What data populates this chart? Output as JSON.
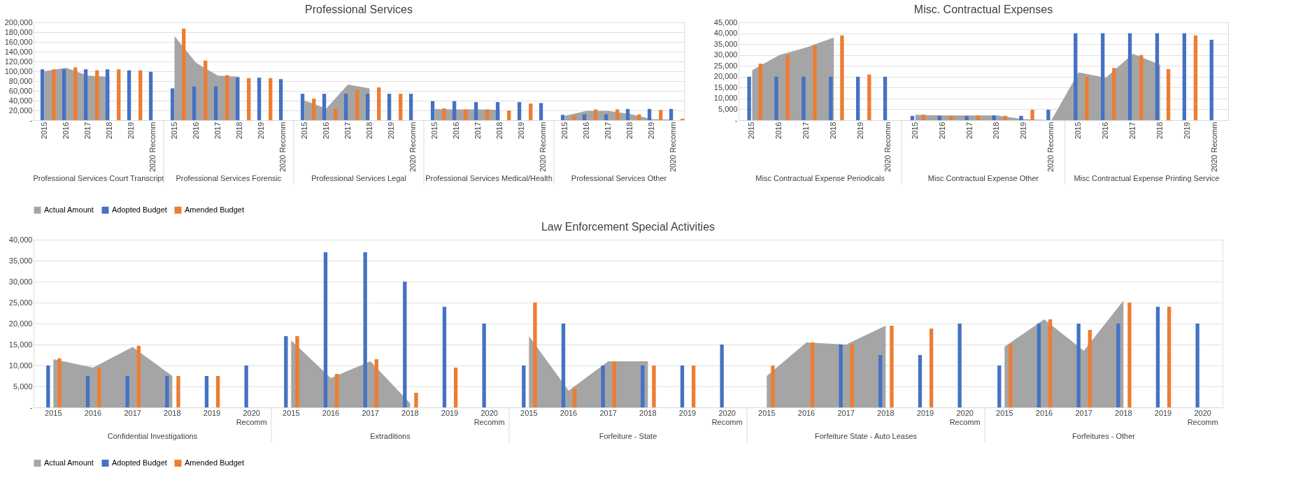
{
  "chart_data": [
    {
      "type": "bar",
      "title": "Professional Services",
      "categories": [
        "2015",
        "2016",
        "2017",
        "2018",
        "2019",
        "2020 Recomm",
        "2015",
        "2016",
        "2017",
        "2018",
        "2019",
        "2020 Recomm",
        "2015",
        "2016",
        "2017",
        "2018",
        "2019",
        "2020 Recomm",
        "2015",
        "2016",
        "2017",
        "2018",
        "2019",
        "2020 Recomm",
        "2015",
        "2016",
        "2017",
        "2018",
        "2019",
        "2020 Recomm"
      ],
      "annotations": [
        "Professional Services Court Transcript",
        "Professional Services Forensic",
        "Professional Services Legal",
        "Professional Services Medical/Health",
        "Professional Services Other"
      ],
      "series": [
        {
          "name": "Actual Amount",
          "type": "area",
          "color": "#a5a5a5",
          "values": [
            100000,
            107000,
            91000,
            89000,
            null,
            null,
            172000,
            117000,
            91000,
            89000,
            null,
            null,
            40000,
            24000,
            73000,
            65000,
            null,
            null,
            23000,
            22000,
            22000,
            21000,
            null,
            null,
            9000,
            19000,
            19000,
            13000,
            2000,
            1000
          ]
        },
        {
          "name": "Adopted Budget",
          "type": "bar",
          "color": "#4472c4",
          "values": [
            104000,
            104000,
            104000,
            104000,
            102000,
            99000,
            65000,
            69000,
            69000,
            87000,
            87000,
            84000,
            54000,
            54000,
            54000,
            54000,
            54000,
            54000,
            39000,
            39000,
            37000,
            37000,
            37000,
            35000,
            11000,
            12000,
            12000,
            23000,
            23000,
            23000
          ]
        },
        {
          "name": "Amended Budget",
          "type": "bar",
          "color": "#ed7d31",
          "values": [
            104000,
            108000,
            102000,
            104000,
            102000,
            null,
            187000,
            122000,
            92000,
            86000,
            86000,
            null,
            44000,
            24000,
            62000,
            67000,
            54000,
            null,
            24000,
            22000,
            22000,
            20000,
            34000,
            null,
            9000,
            22000,
            22000,
            12000,
            21000,
            3000
          ]
        }
      ],
      "ylim": [
        0,
        200000
      ],
      "yticks": [
        {
          "value": 0,
          "label": "-"
        },
        {
          "value": 20000,
          "label": "20,000"
        },
        {
          "value": 40000,
          "label": "40,000"
        },
        {
          "value": 60000,
          "label": "60,000"
        },
        {
          "value": 80000,
          "label": "80,000"
        },
        {
          "value": 100000,
          "label": "100,000"
        },
        {
          "value": 120000,
          "label": "120,000"
        },
        {
          "value": 140000,
          "label": "140,000"
        },
        {
          "value": 160000,
          "label": "160,000"
        },
        {
          "value": 180000,
          "label": "180,000"
        },
        {
          "value": 200000,
          "label": "200,000"
        }
      ],
      "grid": "y",
      "legend": "bottom"
    },
    {
      "type": "bar",
      "title": "Misc. Contractual Expenses",
      "categories": [
        "2015",
        "2016",
        "2017",
        "2018",
        "2019",
        "2020 Recomm",
        "2015",
        "2016",
        "2017",
        "2018",
        "2019",
        "2020 Recomm",
        "2015",
        "2016",
        "2017",
        "2018",
        "2019",
        "2020 Recomm"
      ],
      "annotations": [
        "Misc Contractual Expense Periodicals",
        "Misc Contractual Expense Other",
        "Misc Contractual Expense Printing Service"
      ],
      "series": [
        {
          "name": "Actual Amount",
          "type": "area",
          "color": "#a5a5a5",
          "values": [
            23000,
            30000,
            33500,
            38000,
            null,
            null,
            2500,
            2200,
            2200,
            2200,
            500,
            0,
            22000,
            19500,
            30500,
            25500,
            null,
            null
          ]
        },
        {
          "name": "Adopted Budget",
          "type": "bar",
          "color": "#4472c4",
          "values": [
            20000,
            20000,
            20000,
            20000,
            20000,
            20000,
            2000,
            2000,
            2000,
            2200,
            2000,
            4800,
            40000,
            40000,
            40000,
            40000,
            40000,
            37000
          ]
        },
        {
          "name": "Amended Budget",
          "type": "bar",
          "color": "#ed7d31",
          "values": [
            26000,
            30000,
            34500,
            39000,
            21000,
            null,
            2500,
            2000,
            2200,
            2000,
            4800,
            null,
            20000,
            24000,
            30000,
            23500,
            39000,
            null
          ]
        }
      ],
      "ylim": [
        0,
        45000
      ],
      "yticks": [
        {
          "value": 0,
          "label": "-"
        },
        {
          "value": 5000,
          "label": "5,000"
        },
        {
          "value": 10000,
          "label": "10,000"
        },
        {
          "value": 15000,
          "label": "15,000"
        },
        {
          "value": 20000,
          "label": "20,000"
        },
        {
          "value": 25000,
          "label": "25,000"
        },
        {
          "value": 30000,
          "label": "30,000"
        },
        {
          "value": 35000,
          "label": "35,000"
        },
        {
          "value": 40000,
          "label": "40,000"
        },
        {
          "value": 45000,
          "label": "45,000"
        }
      ],
      "grid": "y",
      "legend": "bottom"
    },
    {
      "type": "bar",
      "title": "Law Enforcement Special Activities",
      "categories": [
        "2015",
        "2016",
        "2017",
        "2018",
        "2019",
        "2020 Recomm",
        "2015",
        "2016",
        "2017",
        "2018",
        "2019",
        "2020 Recomm",
        "2015",
        "2016",
        "2017",
        "2018",
        "2019",
        "2020 Recomm",
        "2015",
        "2016",
        "2017",
        "2018",
        "2019",
        "2020 Recomm",
        "2015",
        "2016",
        "2017",
        "2018",
        "2019",
        "2020 Recomm"
      ],
      "annotations": [
        "Confidential Investigations",
        "Extraditions",
        "Forfeiture - State",
        "Forfeiture State - Auto Leases",
        "Forfeitures - Other"
      ],
      "series": [
        {
          "name": "Actual Amount",
          "type": "area",
          "color": "#a5a5a5",
          "values": [
            11500,
            9500,
            14400,
            7500,
            null,
            null,
            16000,
            7000,
            11000,
            1000,
            null,
            null,
            17000,
            4000,
            11000,
            11000,
            null,
            null,
            7500,
            15500,
            15000,
            19500,
            null,
            null,
            14500,
            21000,
            13500,
            25500,
            null,
            null
          ]
        },
        {
          "name": "Adopted Budget",
          "type": "bar",
          "color": "#4472c4",
          "values": [
            10000,
            7500,
            7500,
            7500,
            7500,
            10000,
            17000,
            37000,
            37000,
            30000,
            24000,
            20000,
            10000,
            20000,
            10000,
            10000,
            10000,
            15000,
            null,
            null,
            15000,
            12500,
            12500,
            20000,
            10000,
            20000,
            20000,
            20000,
            24000,
            20000
          ]
        },
        {
          "name": "Amended Budget",
          "type": "bar",
          "color": "#ed7d31",
          "values": [
            11700,
            9500,
            14700,
            7500,
            7500,
            null,
            17000,
            8000,
            11500,
            3500,
            9500,
            null,
            25000,
            4500,
            11000,
            10000,
            10000,
            null,
            10000,
            15500,
            15000,
            19500,
            18800,
            null,
            15000,
            21000,
            18500,
            25000,
            24000,
            null
          ]
        }
      ],
      "ylim": [
        0,
        40000
      ],
      "yticks": [
        {
          "value": 0,
          "label": "-"
        },
        {
          "value": 5000,
          "label": "5,000"
        },
        {
          "value": 10000,
          "label": "10,000"
        },
        {
          "value": 15000,
          "label": "15,000"
        },
        {
          "value": 20000,
          "label": "20,000"
        },
        {
          "value": 25000,
          "label": "25,000"
        },
        {
          "value": 30000,
          "label": "30,000"
        },
        {
          "value": 35000,
          "label": "35,000"
        },
        {
          "value": 40000,
          "label": "40,000"
        }
      ],
      "grid": "y",
      "legend": "bottom"
    }
  ]
}
